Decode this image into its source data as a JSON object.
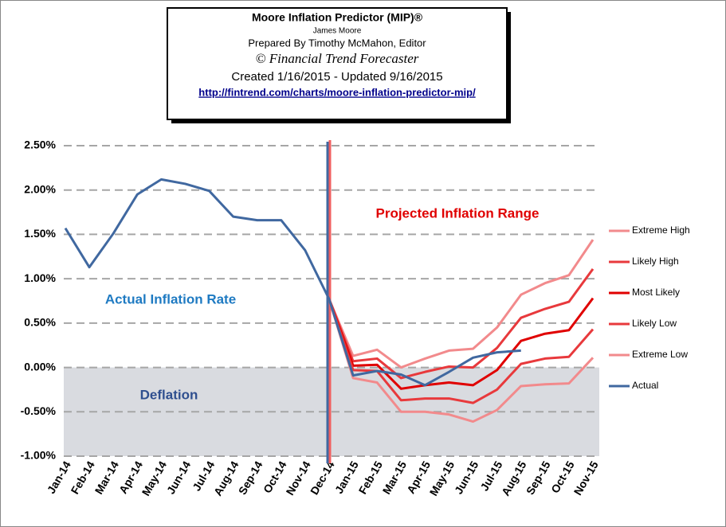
{
  "chart_data": {
    "type": "line",
    "title": "Moore Inflation Predictor (MIP)®",
    "subtitle": "James Moore",
    "credits": [
      "Prepared  By Timothy McMahon, Editor",
      "© Financial Trend Forecaster",
      "Created  1/16/2015 - Updated  9/16/2015"
    ],
    "link": "http://fintrend.com/charts/moore-inflation-predictor-mip/",
    "annotations": [
      "Projected Inflation Range",
      "Actual Inflation Rate",
      "Deflation"
    ],
    "categories": [
      "Jan-14",
      "Feb-14",
      "Mar-14",
      "Apr-14",
      "May-14",
      "Jun-14",
      "Jul-14",
      "Aug-14",
      "Sep-14",
      "Oct-14",
      "Nov-14",
      "Dec-14",
      "Jan-15",
      "Feb-15",
      "Mar-15",
      "Apr-15",
      "May-15",
      "Jun-15",
      "Jul-15",
      "Aug-15",
      "Sep-15",
      "Oct-15",
      "Nov-15"
    ],
    "projection_start": "Dec-14",
    "deflation_band": [
      -1,
      0
    ],
    "series": [
      {
        "name": "Extreme High",
        "color": "#f28a8c",
        "values": [
          null,
          null,
          null,
          null,
          null,
          null,
          null,
          null,
          null,
          null,
          null,
          0.77,
          0.13,
          0.2,
          0.0,
          0.1,
          0.19,
          0.21,
          0.45,
          0.82,
          0.95,
          1.04,
          1.44
        ]
      },
      {
        "name": "Likely High",
        "color": "#e8393c",
        "values": [
          null,
          null,
          null,
          null,
          null,
          null,
          null,
          null,
          null,
          null,
          null,
          0.77,
          0.07,
          0.1,
          -0.12,
          -0.05,
          0.01,
          0.0,
          0.22,
          0.56,
          0.66,
          0.74,
          1.11
        ]
      },
      {
        "name": "Most Likely",
        "color": "#e00000",
        "values": [
          null,
          null,
          null,
          null,
          null,
          null,
          null,
          null,
          null,
          null,
          null,
          0.77,
          0.02,
          0.03,
          -0.24,
          -0.2,
          -0.17,
          -0.2,
          -0.03,
          0.3,
          0.38,
          0.42,
          0.78
        ]
      },
      {
        "name": "Likely Low",
        "color": "#e8393c",
        "values": [
          null,
          null,
          null,
          null,
          null,
          null,
          null,
          null,
          null,
          null,
          null,
          0.77,
          -0.03,
          -0.04,
          -0.37,
          -0.35,
          -0.35,
          -0.4,
          -0.25,
          0.04,
          0.1,
          0.12,
          0.43
        ]
      },
      {
        "name": "Extreme Low",
        "color": "#f28a8c",
        "values": [
          null,
          null,
          null,
          null,
          null,
          null,
          null,
          null,
          null,
          null,
          null,
          0.77,
          -0.12,
          -0.17,
          -0.5,
          -0.5,
          -0.53,
          -0.61,
          -0.48,
          -0.21,
          -0.19,
          -0.18,
          0.11
        ]
      },
      {
        "name": "Actual",
        "color": "#4068a0",
        "values": [
          1.57,
          1.13,
          1.51,
          1.95,
          2.12,
          2.07,
          1.99,
          1.7,
          1.66,
          1.66,
          1.32,
          0.77,
          -0.09,
          -0.04,
          -0.08,
          -0.2,
          -0.05,
          0.11,
          0.17,
          0.19,
          null,
          null,
          null
        ]
      }
    ],
    "ylim": [
      -1,
      2.5
    ],
    "yticks": [
      {
        "value": -1,
        "label": "-1.00%"
      },
      {
        "value": -0.5,
        "label": "-0.50%"
      },
      {
        "value": 0,
        "label": "0.00%"
      },
      {
        "value": 0.5,
        "label": "0.50%"
      },
      {
        "value": 1,
        "label": "1.00%"
      },
      {
        "value": 1.5,
        "label": "1.50%"
      },
      {
        "value": 2,
        "label": "2.00%"
      },
      {
        "value": 2.5,
        "label": "2.50%"
      }
    ],
    "grid": true,
    "legend": "right"
  }
}
